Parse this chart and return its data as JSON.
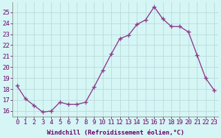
{
  "x": [
    0,
    1,
    2,
    3,
    4,
    5,
    6,
    7,
    8,
    9,
    10,
    11,
    12,
    13,
    14,
    15,
    16,
    17,
    18,
    19,
    20,
    21,
    22,
    23
  ],
  "y": [
    18.3,
    17.1,
    16.5,
    15.9,
    16.0,
    16.8,
    16.6,
    16.6,
    16.8,
    18.2,
    19.7,
    21.2,
    22.6,
    22.9,
    23.9,
    24.3,
    25.5,
    24.4,
    23.7,
    23.7,
    23.2,
    21.1,
    19.0,
    17.9
  ],
  "line_color": "#8b3a8b",
  "marker_color": "#8b3a8b",
  "bg_color": "#d6f5f5",
  "plot_bg_color": "#d6f5f5",
  "grid_color": "#b8dada",
  "xlabel": "Windchill (Refroidissement éolien,°C)",
  "ylim": [
    15.5,
    25.9
  ],
  "xlim": [
    -0.5,
    23.5
  ],
  "yticks": [
    16,
    17,
    18,
    19,
    20,
    21,
    22,
    23,
    24,
    25
  ],
  "xtick_labels": [
    "0",
    "1",
    "2",
    "3",
    "4",
    "5",
    "6",
    "7",
    "8",
    "9",
    "10",
    "11",
    "12",
    "13",
    "14",
    "15",
    "16",
    "17",
    "18",
    "19",
    "20",
    "21",
    "22",
    "23"
  ],
  "xlabel_fontsize": 6.5,
  "tick_fontsize": 6.5,
  "line_width": 1.0,
  "marker_size": 2.5
}
